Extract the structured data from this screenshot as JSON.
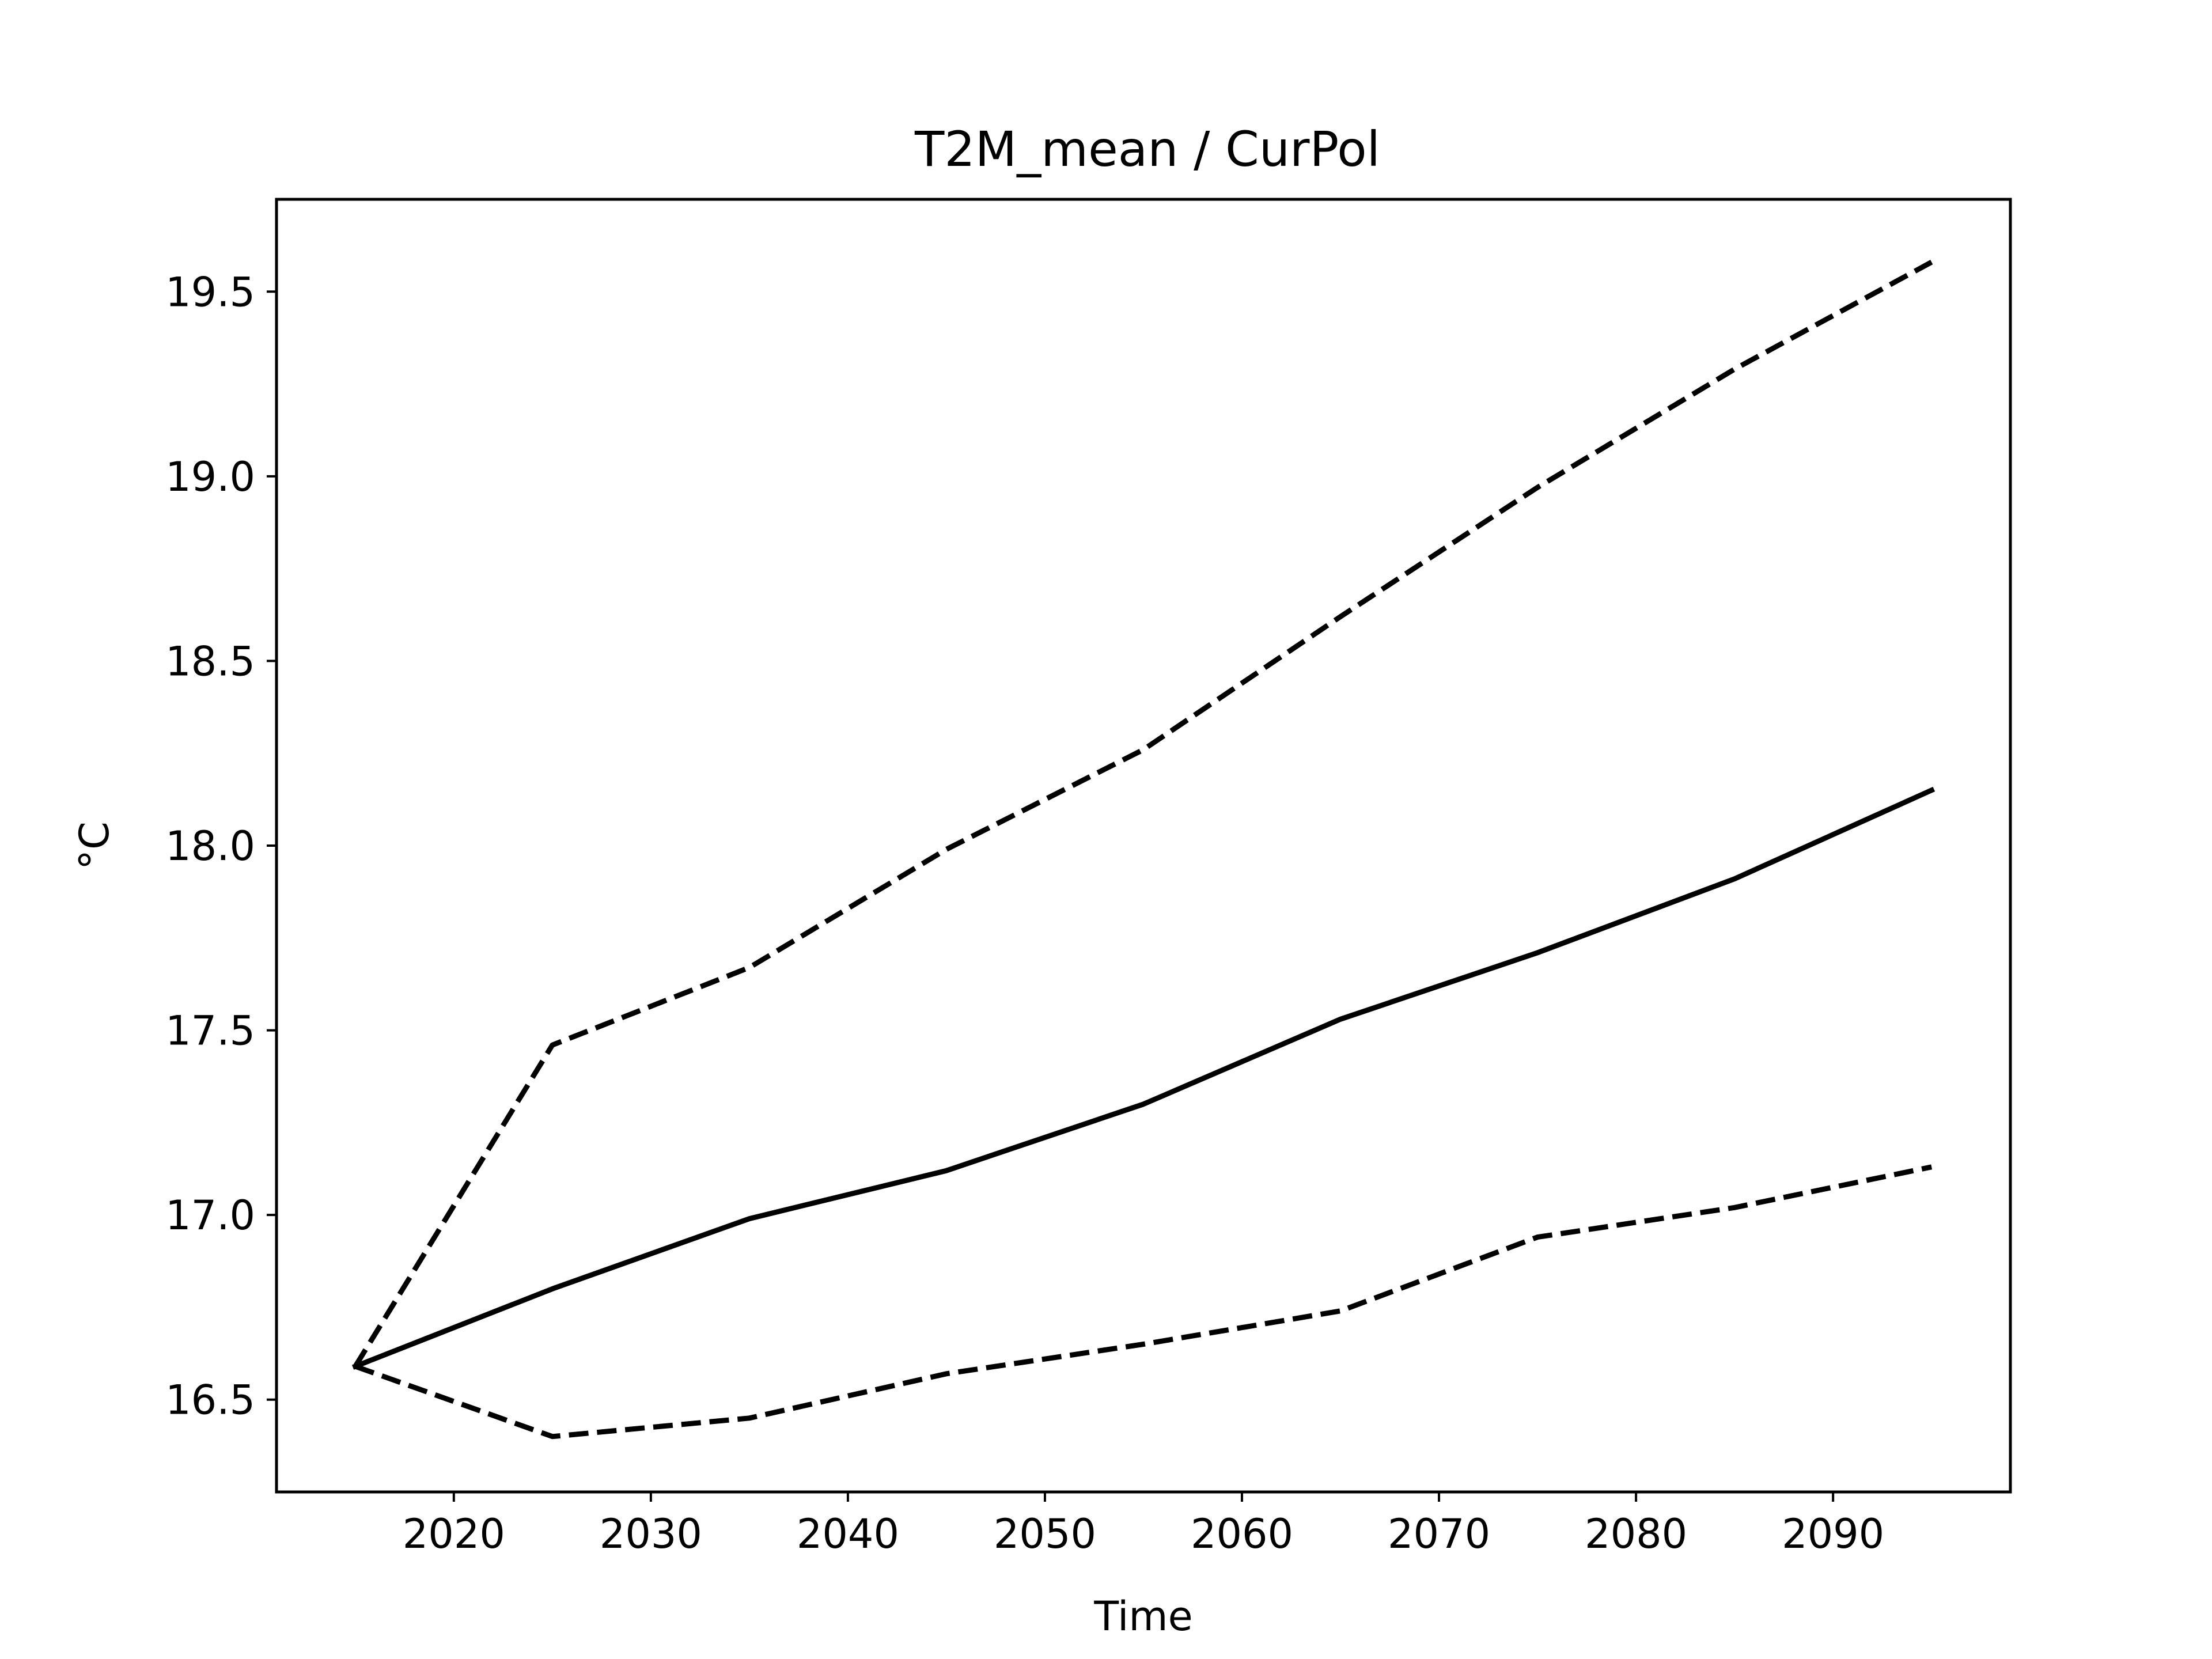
{
  "chart_data": {
    "type": "line",
    "title": "T2M_mean / CurPol",
    "xlabel": "Time",
    "ylabel": "°C",
    "xlim": [
      2011,
      2099
    ],
    "ylim": [
      16.25,
      19.75
    ],
    "xticks": [
      2020,
      2030,
      2040,
      2050,
      2060,
      2070,
      2080,
      2090
    ],
    "yticks": [
      16.5,
      17.0,
      17.5,
      18.0,
      18.5,
      19.0,
      19.5
    ],
    "ytick_labels": [
      "16.5",
      "17.0",
      "17.5",
      "18.0",
      "18.5",
      "19.0",
      "19.5"
    ],
    "grid": false,
    "legend": "none",
    "x": [
      2015,
      2025,
      2035,
      2045,
      2055,
      2065,
      2075,
      2085,
      2095
    ],
    "series": [
      {
        "style": "solid",
        "color": "#000000",
        "values": [
          16.59,
          16.8,
          16.99,
          17.12,
          17.3,
          17.53,
          17.71,
          17.91,
          18.15
        ]
      },
      {
        "style": "dashed",
        "color": "#000000",
        "values": [
          16.59,
          17.46,
          17.67,
          17.99,
          18.26,
          18.62,
          18.97,
          19.29,
          19.58
        ]
      },
      {
        "style": "dashed",
        "color": "#000000",
        "values": [
          16.59,
          16.4,
          16.45,
          16.57,
          16.65,
          16.74,
          16.94,
          17.02,
          17.13
        ]
      }
    ]
  }
}
